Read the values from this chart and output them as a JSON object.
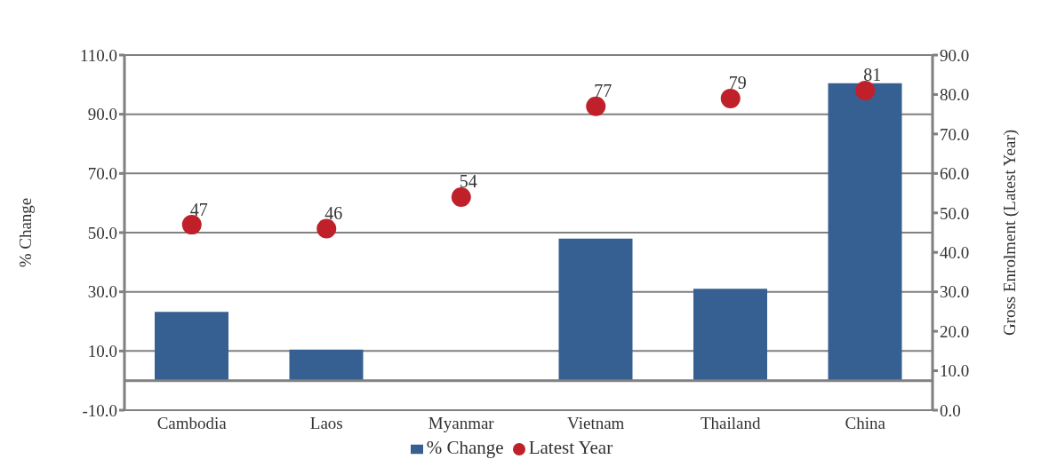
{
  "chart_data": {
    "type": "bar",
    "categories": [
      "Cambodia",
      "Laos",
      "Myanmar",
      "Vietnam",
      "Thailand",
      "China"
    ],
    "series": [
      {
        "name": "% Change",
        "color": "#366092",
        "values": [
          23.2,
          10.5,
          null,
          48,
          31,
          100.5
        ]
      },
      {
        "name": "Latest Year",
        "type": "scatter",
        "axis": "y2",
        "color": "#c0202a",
        "values": [
          47,
          46,
          54,
          77,
          79,
          81
        ],
        "value_labels": [
          "47",
          "46",
          "54",
          "77",
          "79",
          "81"
        ]
      }
    ],
    "ylabel": "% Change",
    "y2label": "Gross Enrolment (Latest Year)",
    "ylim": [
      -10,
      110
    ],
    "yticks": [
      {
        "value": -10,
        "label": "-10.0"
      },
      {
        "value": 10,
        "label": "10.0"
      },
      {
        "value": 30,
        "label": "30.0"
      },
      {
        "value": 50,
        "label": "50.0"
      },
      {
        "value": 70,
        "label": "70.0"
      },
      {
        "value": 90,
        "label": "90.0"
      },
      {
        "value": 110,
        "label": "110.0"
      }
    ],
    "y2lim": [
      0,
      90
    ],
    "y2ticks": [
      {
        "value": 0,
        "label": "0.0"
      },
      {
        "value": 10,
        "label": "10.0"
      },
      {
        "value": 20,
        "label": "20.0"
      },
      {
        "value": 30,
        "label": "30.0"
      },
      {
        "value": 40,
        "label": "40.0"
      },
      {
        "value": 50,
        "label": "50.0"
      },
      {
        "value": 60,
        "label": "60.0"
      },
      {
        "value": 70,
        "label": "70.0"
      },
      {
        "value": 80,
        "label": "80.0"
      },
      {
        "value": 90,
        "label": "90.0"
      }
    ],
    "ref_lines": [
      {
        "axis": "y",
        "value": 0
      }
    ],
    "grid": "y",
    "legend": "bottom",
    "marker": "circle"
  }
}
